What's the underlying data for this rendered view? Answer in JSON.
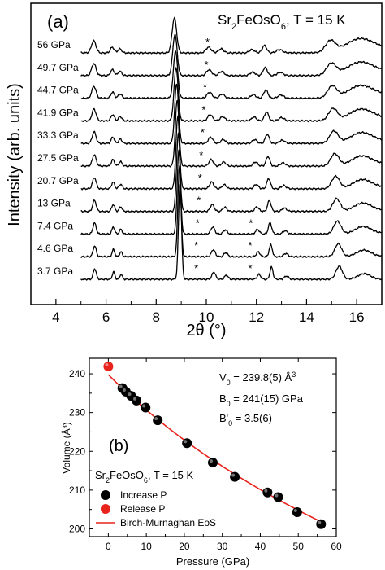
{
  "chart_data": [
    {
      "type": "line",
      "panel_label": "(a)",
      "annotation": {
        "formula": "Sr",
        "sub1": "2",
        "mid": "FeOsO",
        "sub2": "6",
        "rest": ", T = 15 K"
      },
      "xlabel": "2θ (°)",
      "ylabel": "Intensity (arb. units)",
      "xlim": [
        3,
        17
      ],
      "xticks": [
        "4",
        "6",
        "8",
        "10",
        "12",
        "14",
        "16"
      ],
      "xtick_values": [
        4,
        6,
        8,
        10,
        12,
        14,
        16
      ],
      "grid": false,
      "impurity_marker": "*",
      "peak_positions": [
        5.55,
        6.3,
        6.6,
        8.95,
        10.3,
        10.8,
        12.1,
        12.6,
        13.2,
        15.3,
        16.3
      ],
      "series": [
        {
          "name": "3.7 GPa",
          "star_positions": [
            9.6,
            11.75
          ]
        },
        {
          "name": "4.6 GPa",
          "star_positions": [
            9.6,
            11.75
          ]
        },
        {
          "name": "7.4 GPa",
          "star_positions": [
            9.65,
            11.78
          ]
        },
        {
          "name": "13 GPa",
          "star_positions": [
            9.7
          ]
        },
        {
          "name": "20.7 GPa",
          "star_positions": [
            9.75
          ]
        },
        {
          "name": "27.5 GPa",
          "star_positions": [
            9.8
          ]
        },
        {
          "name": "33.3 GPa",
          "star_positions": [
            9.85
          ]
        },
        {
          "name": "41.9 GPa",
          "star_positions": [
            9.9
          ]
        },
        {
          "name": "44.7 GPa",
          "star_positions": [
            9.95
          ]
        },
        {
          "name": "49.7 GPa",
          "star_positions": [
            10.0
          ]
        },
        {
          "name": "56 GPa",
          "star_positions": [
            10.05
          ]
        }
      ]
    },
    {
      "type": "scatter",
      "panel_label": "(b)",
      "xlabel": "Pressure (GPa)",
      "ylabel": "Volume (Å³)",
      "xlim": [
        -5,
        60
      ],
      "ylim": [
        198,
        244
      ],
      "xticks": [
        "0",
        "10",
        "20",
        "30",
        "40",
        "50",
        "60"
      ],
      "xtick_values": [
        0,
        10,
        20,
        30,
        40,
        50,
        60
      ],
      "yticks": [
        "200",
        "210",
        "220",
        "230",
        "240"
      ],
      "ytick_values": [
        200,
        210,
        220,
        230,
        240
      ],
      "grid": false,
      "annotation": {
        "formula": "Sr",
        "sub1": "2",
        "mid": "FeOsO",
        "sub2": "6",
        "rest": ", T = 15 K"
      },
      "fit_parameters": {
        "v0": {
          "label": "V",
          "sub": "0",
          "value": " = 239.8(5) Å",
          "sup": "3"
        },
        "b0": {
          "label": "B",
          "sub": "0",
          "value": " = 241(15) GPa"
        },
        "b0p": {
          "label": "B'",
          "sub": "0",
          "value": " = 3.5(6)"
        }
      },
      "legend_placement": "bottom-left",
      "legend": [
        "Increase P",
        "Release P",
        "Birch-Murnaghan EoS"
      ],
      "colors": {
        "increase": "#000000",
        "release": "#e8231c",
        "fit": "#e8231c"
      },
      "series": [
        {
          "name": "Increase P",
          "x": [
            3.7,
            4.6,
            6.0,
            7.4,
            9.8,
            13.0,
            20.7,
            27.5,
            33.3,
            41.9,
            44.7,
            49.7,
            56.0
          ],
          "y": [
            236.3,
            235.4,
            234.3,
            233.1,
            231.3,
            228.0,
            222.1,
            217.1,
            213.4,
            209.4,
            208.2,
            204.3,
            201.2
          ]
        },
        {
          "name": "Release P",
          "x": [
            0.0
          ],
          "y": [
            241.9
          ]
        },
        {
          "name": "Birch-Murnaghan EoS",
          "v0": 239.8,
          "b0": 241,
          "b0_prime": 3.5,
          "p_range": [
            0,
            56
          ]
        }
      ]
    }
  ]
}
